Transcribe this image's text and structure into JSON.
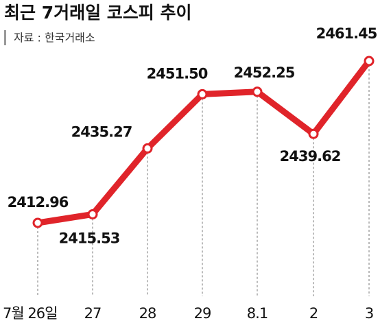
{
  "chart_data": {
    "type": "line",
    "title": "최근 7거래일 코스피 추이",
    "subtitle": "자료 : 한국거래소",
    "categories": [
      "7월 26일",
      "27",
      "28",
      "29",
      "8.1",
      "2",
      "3"
    ],
    "series": [
      {
        "name": "코스피",
        "color": "#e0242a",
        "values": [
          2412.96,
          2415.53,
          2435.27,
          2451.5,
          2452.25,
          2439.62,
          2461.45
        ],
        "value_labels": [
          "2412.96",
          "2415.53",
          "2435.27",
          "2451.50",
          "2452.25",
          "2439.62",
          "2461.45"
        ]
      }
    ]
  }
}
